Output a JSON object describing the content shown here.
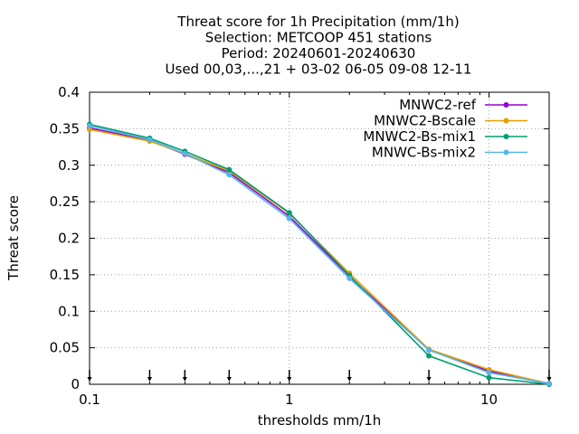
{
  "chart_data": {
    "type": "line",
    "title_lines": [
      "Threat score  for 1h Precipitation (mm/1h)",
      "Selection: METCOOP    451 stations",
      "Period: 20240601-20240630",
      "Used 00,03,...,21 + 03-02 06-05 09-08 12-11"
    ],
    "xlabel": "thresholds mm/1h",
    "ylabel": "Threat score",
    "x_scale": "log",
    "xlim": [
      0.1,
      20
    ],
    "ylim": [
      0,
      0.4
    ],
    "x_ticks": [
      0.1,
      1,
      10
    ],
    "x_tick_labels": [
      "0.1",
      "1",
      "10"
    ],
    "y_ticks": [
      0,
      0.05,
      0.1,
      0.15,
      0.2,
      0.25,
      0.3,
      0.35,
      0.4
    ],
    "y_tick_labels": [
      "0",
      "0.05",
      "0.1",
      "0.15",
      "0.2",
      "0.25",
      "0.3",
      "0.35",
      "0.4"
    ],
    "grid": true,
    "legend_position": "top-right",
    "threshold_markers": [
      0.1,
      0.2,
      0.3,
      0.5,
      1,
      2,
      5,
      10,
      20
    ],
    "x": [
      0.1,
      0.2,
      0.3,
      0.5,
      1,
      2,
      5,
      10,
      20
    ],
    "series": [
      {
        "name": "MNWC2-ref",
        "color": "#9400d3",
        "values": [
          0.351,
          0.334,
          0.315,
          0.29,
          0.23,
          0.148,
          0.047,
          0.018,
          0.001
        ]
      },
      {
        "name": "MNWC2-Bscale",
        "color": "#e69f00",
        "values": [
          0.349,
          0.333,
          0.316,
          0.292,
          0.234,
          0.152,
          0.048,
          0.02,
          0.001
        ]
      },
      {
        "name": "MNWC2-Bs-mix1",
        "color": "#009e73",
        "values": [
          0.356,
          0.337,
          0.319,
          0.294,
          0.235,
          0.149,
          0.039,
          0.009,
          0.0
        ]
      },
      {
        "name": "MNWC-Bs-mix2",
        "color": "#56b4e9",
        "values": [
          0.354,
          0.335,
          0.316,
          0.287,
          0.227,
          0.145,
          0.047,
          0.016,
          0.001
        ]
      }
    ]
  }
}
